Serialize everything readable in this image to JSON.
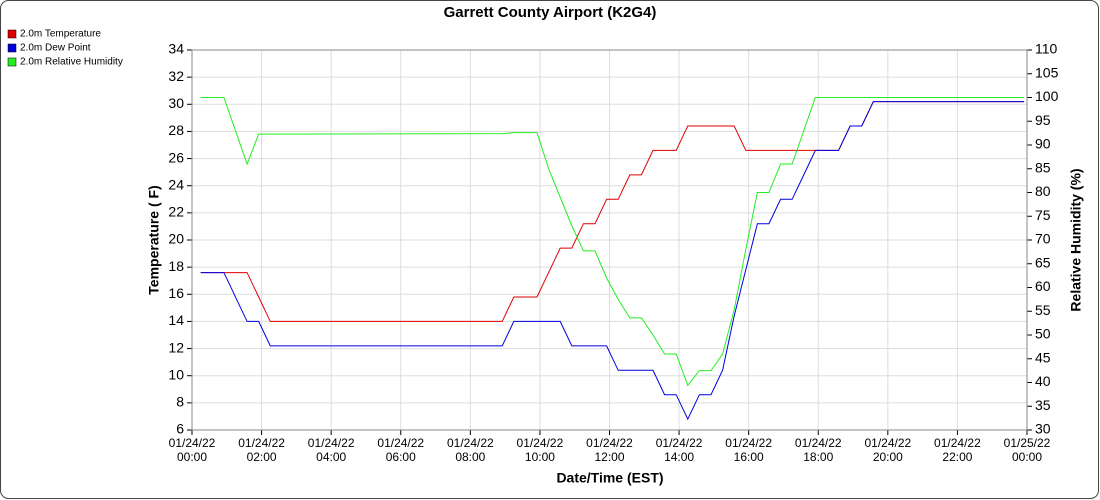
{
  "chart_data": {
    "type": "line",
    "title": "Garrett County Airport (K2G4)",
    "xlabel": "Date/Time (EST)",
    "ylabel": "Temperature ( F)",
    "y2label": "Relative Humidity (%)",
    "x": [
      "01/24/22 00:15",
      "01/24/22 00:55",
      "01/24/22 01:35",
      "01/24/22 01:55",
      "01/24/22 02:15",
      "01/24/22 08:55",
      "01/24/22 09:15",
      "01/24/22 09:55",
      "01/24/22 10:15",
      "01/24/22 10:35",
      "01/24/22 10:55",
      "01/24/22 11:15",
      "01/24/22 11:35",
      "01/24/22 11:55",
      "01/24/22 12:15",
      "01/24/22 12:35",
      "01/24/22 12:55",
      "01/24/22 13:15",
      "01/24/22 13:35",
      "01/24/22 13:55",
      "01/24/22 14:15",
      "01/24/22 14:35",
      "01/24/22 14:55",
      "01/24/22 15:15",
      "01/24/22 15:35",
      "01/24/22 15:55",
      "01/24/22 16:15",
      "01/24/22 16:35",
      "01/24/22 16:55",
      "01/24/22 17:15",
      "01/24/22 17:35",
      "01/24/22 17:55",
      "01/24/22 18:15",
      "01/24/22 18:35",
      "01/24/22 18:55",
      "01/24/22 19:15",
      "01/24/22 19:35",
      "01/24/22 23:55"
    ],
    "series": [
      {
        "name": "2.0m Temperature",
        "color": "#e00000",
        "values": [
          17.6,
          17.6,
          17.6,
          15.8,
          14,
          14,
          15.8,
          15.8,
          17.6,
          19.4,
          19.4,
          21.2,
          21.2,
          23,
          23,
          24.8,
          24.8,
          26.6,
          26.6,
          26.6,
          28.4,
          28.4,
          28.4,
          28.4,
          28.4,
          26.6,
          26.6,
          26.6,
          26.6,
          26.6,
          26.6,
          26.6,
          26.6,
          26.6,
          28.4,
          28.4,
          30.2,
          30.2
        ]
      },
      {
        "name": "2.0m Dew Point",
        "color": "#0000e0",
        "values": [
          17.6,
          17.6,
          14,
          14,
          12.2,
          12.2,
          14,
          14,
          14,
          14,
          12.2,
          12.2,
          12.2,
          12.2,
          10.4,
          10.4,
          10.4,
          10.4,
          8.6,
          8.6,
          6.8,
          8.6,
          8.6,
          10.4,
          14.4,
          17.8,
          21.2,
          21.2,
          23,
          23,
          24.8,
          26.6,
          26.6,
          26.6,
          28.4,
          28.4,
          30.2,
          30.2
        ]
      },
      {
        "name": "2.0m Relative Humidity",
        "color": "#22ee22",
        "axis": "y2",
        "values": [
          100,
          100,
          86,
          92.3,
          92.3,
          92.4,
          92.6,
          92.6,
          85,
          79,
          73,
          67.7,
          67.7,
          62,
          57.5,
          53.6,
          53.6,
          50,
          46,
          46,
          39.4,
          42.5,
          42.5,
          46,
          55.3,
          68,
          80,
          80,
          86,
          86,
          93,
          100,
          100,
          100,
          100,
          100,
          100,
          100
        ]
      }
    ],
    "xlim": [
      "01/24/22 00:00",
      "01/25/22 00:00"
    ],
    "xticks": [
      "01/24/22\n00:00",
      "01/24/22\n02:00",
      "01/24/22\n04:00",
      "01/24/22\n06:00",
      "01/24/22\n08:00",
      "01/24/22\n10:00",
      "01/24/22\n12:00",
      "01/24/22\n14:00",
      "01/24/22\n16:00",
      "01/24/22\n18:00",
      "01/24/22\n20:00",
      "01/24/22\n22:00",
      "01/25/22\n00:00"
    ],
    "ylim": [
      6,
      34
    ],
    "yticks": [
      6,
      8,
      10,
      12,
      14,
      16,
      18,
      20,
      22,
      24,
      26,
      28,
      30,
      32,
      34
    ],
    "y2lim": [
      30,
      110
    ],
    "y2ticks": [
      30,
      35,
      40,
      45,
      50,
      55,
      60,
      65,
      70,
      75,
      80,
      85,
      90,
      95,
      100,
      105,
      110
    ],
    "grid": true,
    "legend": "top-left"
  }
}
